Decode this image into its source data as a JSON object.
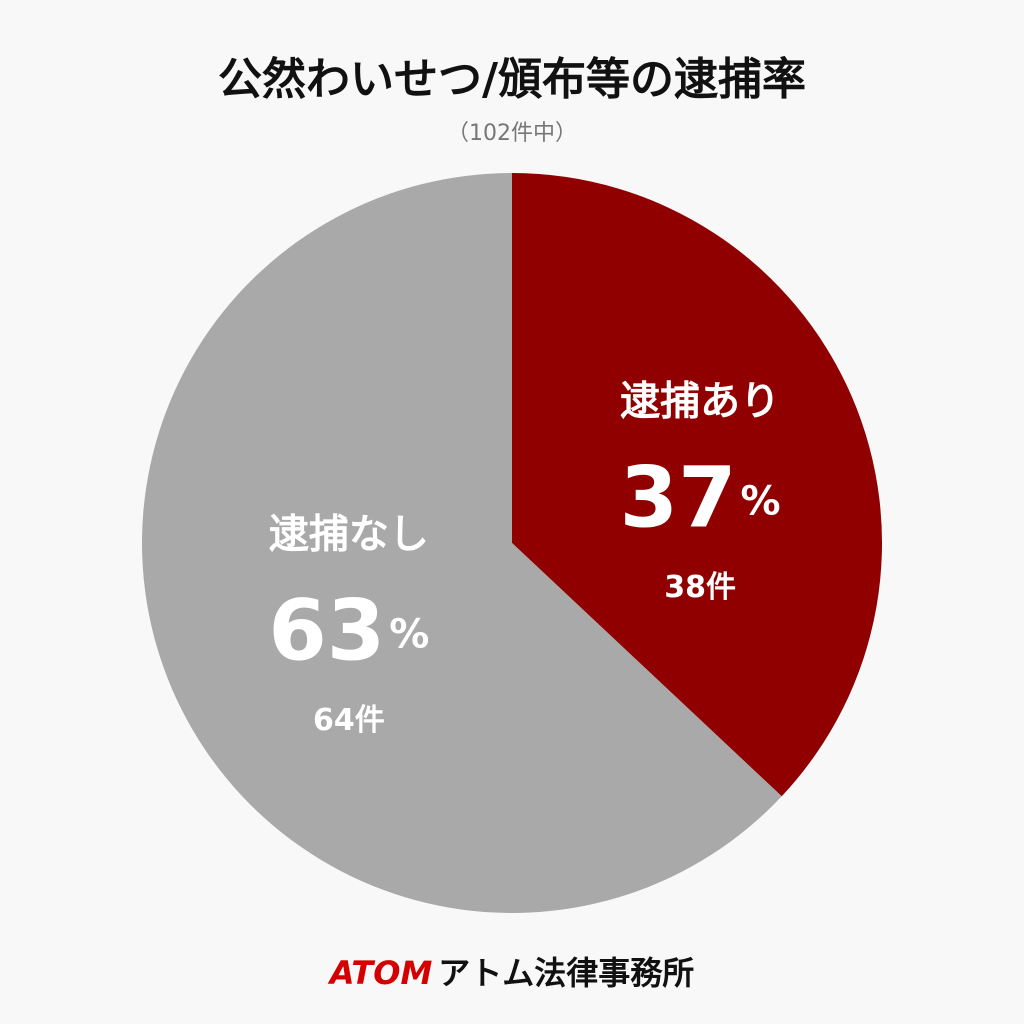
{
  "chart_data": {
    "type": "pie",
    "title": "公然わいせつ/頒布等の逮捕率",
    "subtitle": "（102件中）",
    "categories": [
      "逮捕あり",
      "逮捕なし"
    ],
    "values": [
      37,
      63
    ],
    "unit": "%",
    "counts": [
      38,
      64
    ],
    "count_labels": [
      "38件",
      "64件"
    ],
    "colors": [
      "#900000",
      "#a9a9a9"
    ],
    "footer": {
      "brand": "ATOM",
      "name": "アトム法律事務所"
    }
  }
}
